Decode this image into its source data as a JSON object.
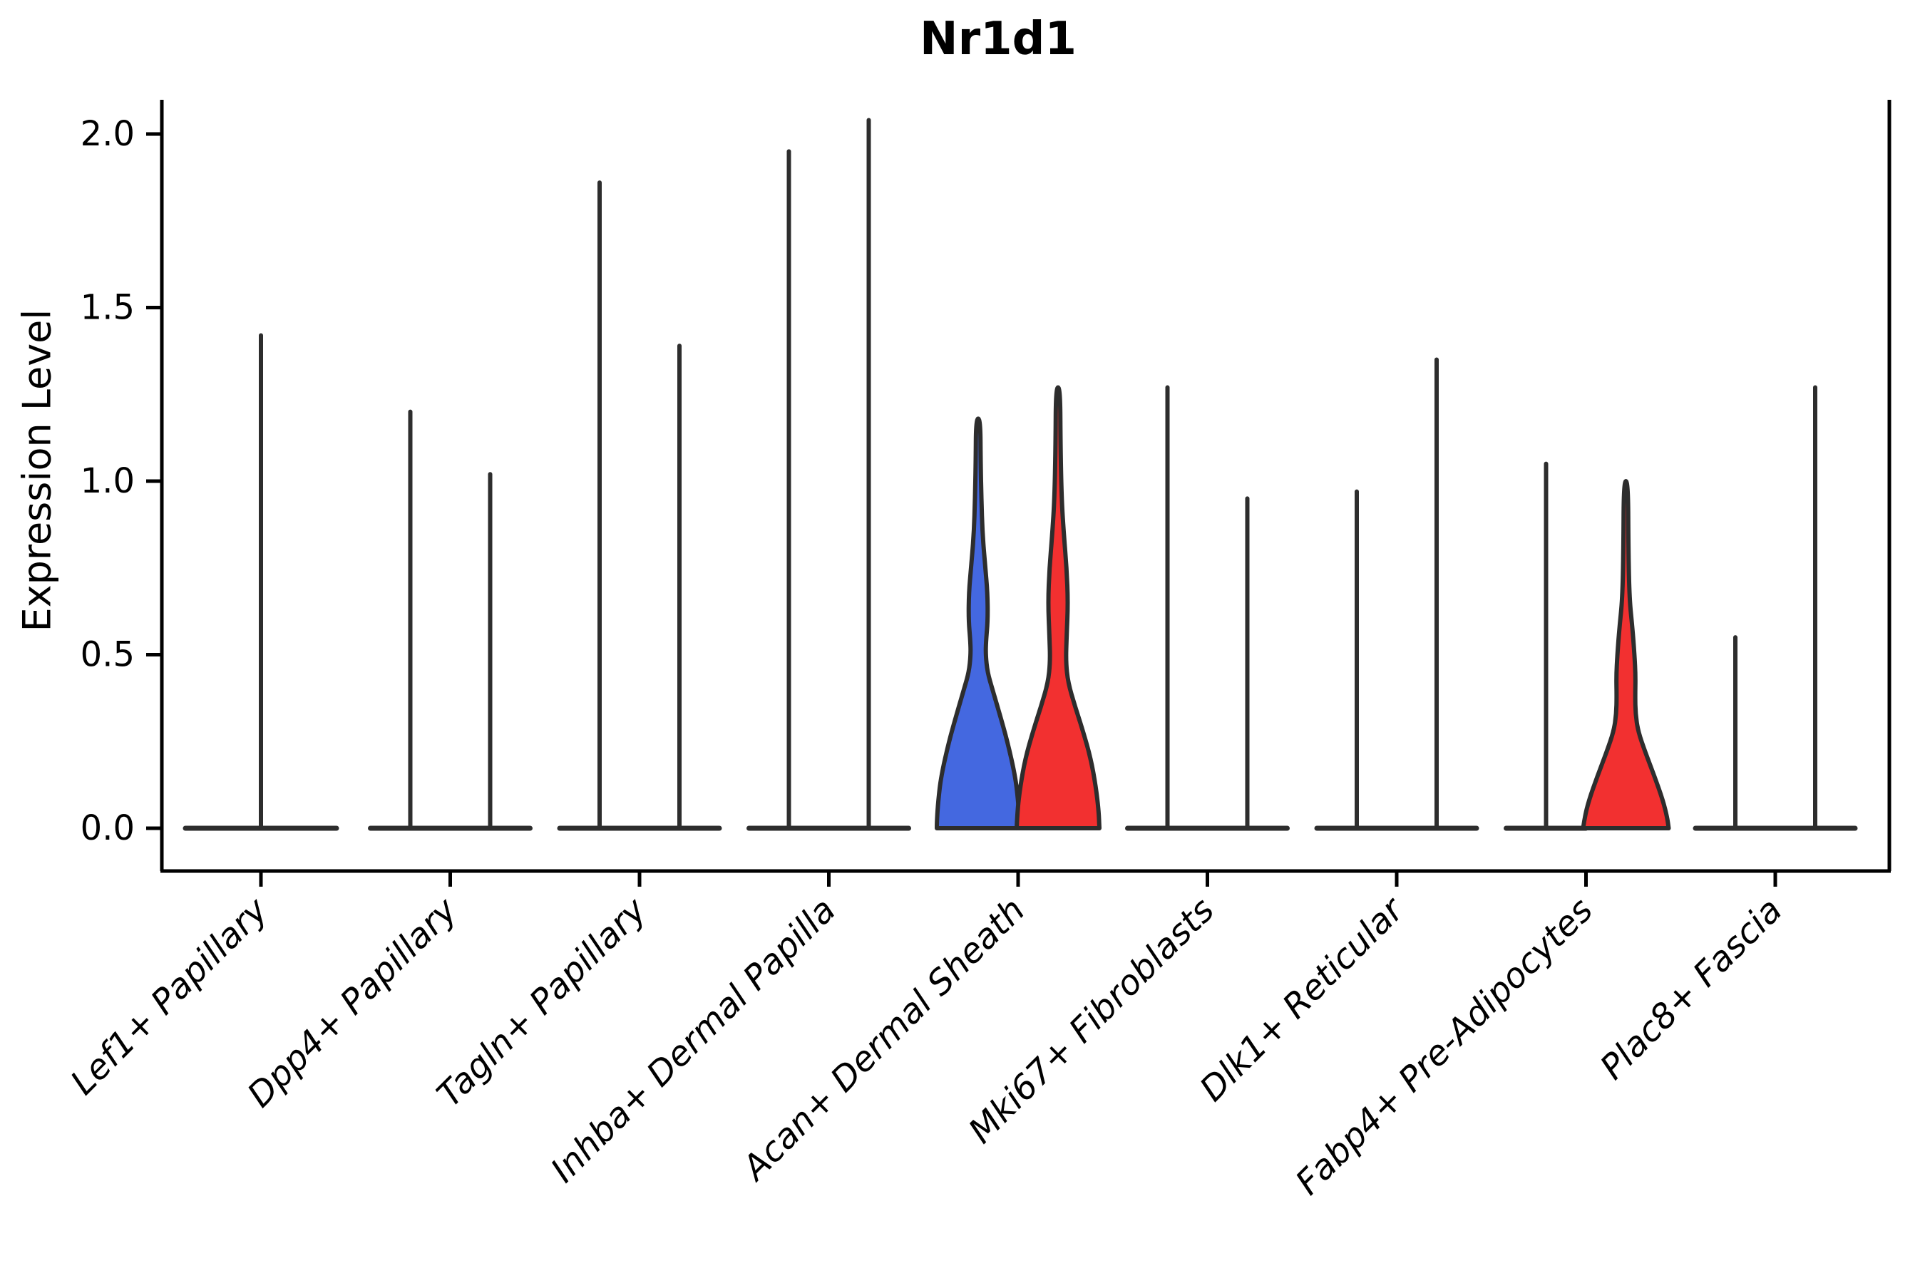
{
  "title": "Nr1d1",
  "ylabel": "Expression Level",
  "colors": {
    "violin_outline": "#2d2d2d",
    "axis": "#000000",
    "group1_fill": "#4468e0",
    "group2_fill": "#f23030",
    "background": "#ffffff"
  },
  "chart_data": {
    "type": "violin",
    "title": "Nr1d1",
    "xlabel": "",
    "ylabel": "Expression Level",
    "ylim": [
      0,
      2.1
    ],
    "yticks": [
      "0.0",
      "0.5",
      "1.0",
      "1.5",
      "2.0"
    ],
    "ytick_values": [
      0.0,
      0.5,
      1.0,
      1.5,
      2.0
    ],
    "grid": false,
    "legend": "none",
    "categories": [
      "Lef1+ Papillary",
      "Dpp4+ Papillary",
      "Tagln+ Papillary",
      "Inhba+ Dermal Papilla",
      "Acan+ Dermal Sheath",
      "Mki67+ Fibroblasts",
      "Dlk1+ Reticular",
      "Fabp4+ Pre-Adipocytes",
      "Plac8+ Fascia"
    ],
    "series": [
      {
        "category": "Lef1+ Papillary",
        "violins": [
          {
            "position": "center",
            "max_expression": 1.42,
            "style": "line"
          }
        ]
      },
      {
        "category": "Dpp4+ Papillary",
        "violins": [
          {
            "position": "left",
            "max_expression": 1.2,
            "style": "line"
          },
          {
            "position": "right",
            "max_expression": 1.02,
            "style": "line"
          }
        ]
      },
      {
        "category": "Tagln+ Papillary",
        "violins": [
          {
            "position": "left",
            "max_expression": 1.86,
            "style": "line"
          },
          {
            "position": "right",
            "max_expression": 1.39,
            "style": "line"
          }
        ]
      },
      {
        "category": "Inhba+ Dermal Papilla",
        "violins": [
          {
            "position": "left",
            "max_expression": 1.95,
            "style": "line"
          },
          {
            "position": "right",
            "max_expression": 2.04,
            "style": "line"
          }
        ]
      },
      {
        "category": "Acan+ Dermal Sheath",
        "violins": [
          {
            "position": "left",
            "max_expression": 1.18,
            "style": "filled",
            "fill": "#4468e0",
            "profile": [
              [
                1.18,
                3
              ],
              [
                1.05,
                3.5
              ],
              [
                0.95,
                4.5
              ],
              [
                0.85,
                6
              ],
              [
                0.75,
                10
              ],
              [
                0.68,
                13
              ],
              [
                0.6,
                13.5
              ],
              [
                0.54,
                11
              ],
              [
                0.5,
                10.5
              ],
              [
                0.45,
                13
              ],
              [
                0.4,
                20
              ],
              [
                0.33,
                30
              ],
              [
                0.25,
                41
              ],
              [
                0.15,
                52
              ],
              [
                0.08,
                56
              ],
              [
                0.02,
                58
              ],
              [
                0.0,
                58
              ]
            ]
          },
          {
            "position": "right",
            "max_expression": 1.27,
            "style": "filled",
            "fill": "#f23030",
            "profile": [
              [
                1.27,
                3
              ],
              [
                1.1,
                3.5
              ],
              [
                0.95,
                5
              ],
              [
                0.85,
                8
              ],
              [
                0.75,
                12
              ],
              [
                0.65,
                14
              ],
              [
                0.55,
                12
              ],
              [
                0.48,
                11
              ],
              [
                0.42,
                14
              ],
              [
                0.35,
                24
              ],
              [
                0.28,
                35
              ],
              [
                0.2,
                46
              ],
              [
                0.12,
                53
              ],
              [
                0.05,
                57
              ],
              [
                0.0,
                58
              ]
            ]
          }
        ]
      },
      {
        "category": "Mki67+ Fibroblasts",
        "violins": [
          {
            "position": "left",
            "max_expression": 1.27,
            "style": "line"
          },
          {
            "position": "right",
            "max_expression": 0.95,
            "style": "line"
          }
        ]
      },
      {
        "category": "Dlk1+ Reticular",
        "violins": [
          {
            "position": "left",
            "max_expression": 0.97,
            "style": "line"
          },
          {
            "position": "right",
            "max_expression": 1.35,
            "style": "line"
          }
        ]
      },
      {
        "category": "Fabp4+ Pre-Adipocytes",
        "violins": [
          {
            "position": "left",
            "max_expression": 1.05,
            "style": "line"
          },
          {
            "position": "right",
            "max_expression": 1.0,
            "style": "filled",
            "fill": "#f23030",
            "profile": [
              [
                1.0,
                3
              ],
              [
                0.8,
                3.5
              ],
              [
                0.66,
                5
              ],
              [
                0.58,
                9
              ],
              [
                0.5,
                12
              ],
              [
                0.44,
                13.5
              ],
              [
                0.38,
                13
              ],
              [
                0.33,
                13.5
              ],
              [
                0.28,
                17
              ],
              [
                0.22,
                27
              ],
              [
                0.15,
                40
              ],
              [
                0.08,
                52
              ],
              [
                0.03,
                58
              ],
              [
                0.0,
                60
              ]
            ]
          }
        ]
      },
      {
        "category": "Plac8+ Fascia",
        "violins": [
          {
            "position": "left",
            "max_expression": 0.55,
            "style": "line"
          },
          {
            "position": "right",
            "max_expression": 1.27,
            "style": "line"
          }
        ]
      }
    ]
  }
}
